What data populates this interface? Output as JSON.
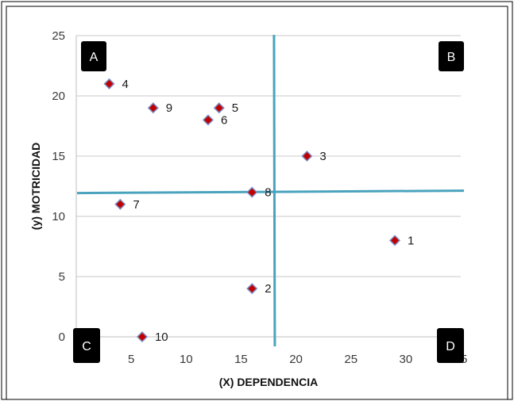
{
  "chart_data": {
    "type": "scatter",
    "title": "",
    "xlabel": "(X) DEPENDENCIA",
    "ylabel": "(y) MOTRICIDAD",
    "xlim": [
      0,
      35
    ],
    "ylim": [
      0,
      25
    ],
    "xticks": [
      "0",
      "5",
      "10",
      "15",
      "20",
      "25",
      "30",
      "35"
    ],
    "yticks": [
      "0",
      "5",
      "10",
      "15",
      "20",
      "25"
    ],
    "grid": "horizontal",
    "legend": "none",
    "marker_fill": "#c00000",
    "marker_edge": "#7b8fc7",
    "divider_color": "#4aa3bd",
    "quadrant_box_color": "#000000",
    "points": [
      {
        "label": "1",
        "x": 29,
        "y": 8
      },
      {
        "label": "2",
        "x": 16,
        "y": 4
      },
      {
        "label": "3",
        "x": 21,
        "y": 15
      },
      {
        "label": "4",
        "x": 3,
        "y": 21
      },
      {
        "label": "5",
        "x": 13,
        "y": 19
      },
      {
        "label": "6",
        "x": 12,
        "y": 18
      },
      {
        "label": "7",
        "x": 4,
        "y": 11
      },
      {
        "label": "8",
        "x": 16,
        "y": 12
      },
      {
        "label": "9",
        "x": 7,
        "y": 19
      },
      {
        "label": "10",
        "x": 6,
        "y": 0
      }
    ],
    "dividers": {
      "x": 18,
      "y": 12
    },
    "quadrants": {
      "top_left": "A",
      "top_right": "B",
      "bottom_left": "C",
      "bottom_right": "D"
    }
  }
}
